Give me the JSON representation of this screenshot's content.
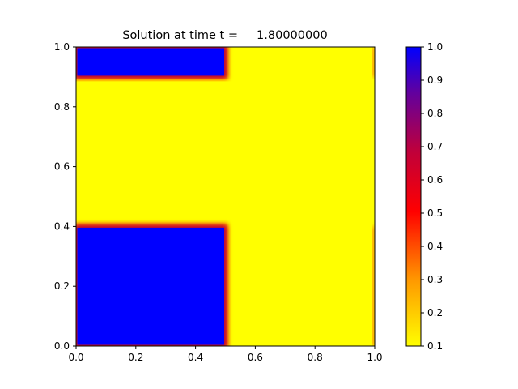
{
  "chart_data": {
    "type": "heatmap",
    "title": "Solution at time t =     1.80000000",
    "xlabel": "",
    "ylabel": "",
    "xlim": [
      0.0,
      1.0
    ],
    "ylim": [
      0.0,
      1.0
    ],
    "x_ticks": [
      "0.0",
      "0.2",
      "0.4",
      "0.6",
      "0.8",
      "1.0"
    ],
    "y_ticks": [
      "0.0",
      "0.2",
      "0.4",
      "0.6",
      "0.8",
      "1.0"
    ],
    "grid": false,
    "colormap": {
      "low": "#ffff00",
      "mid_low": "#ff6600",
      "mid": "#ff0000",
      "mid_high": "#aa0044",
      "high": "#0000ff"
    },
    "colorbar": {
      "vmin": 0.1,
      "vmax": 1.0,
      "ticks": [
        "0.1",
        "0.2",
        "0.3",
        "0.4",
        "0.5",
        "0.6",
        "0.7",
        "0.8",
        "0.9",
        "1.0"
      ]
    },
    "background_value": 0.1,
    "regions": [
      {
        "name": "bottom-left-block",
        "x": [
          0.0,
          0.5
        ],
        "y": [
          0.0,
          0.4
        ],
        "value": 1.0
      },
      {
        "name": "top-left-block",
        "x": [
          0.0,
          0.5
        ],
        "y": [
          0.9,
          1.0
        ],
        "value": 1.0
      }
    ]
  }
}
